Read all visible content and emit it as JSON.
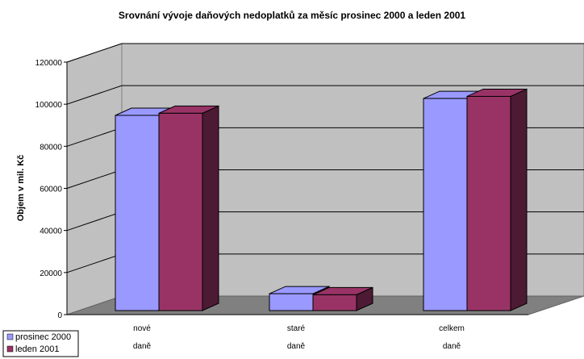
{
  "chart_data": {
    "type": "bar",
    "title": "Srovnání vývoje daňových nedoplatků za měsíc prosinec 2000 a leden 2001",
    "ylabel": "Objem v mil. Kč",
    "ylim": [
      0,
      120000
    ],
    "yticks": [
      "0",
      "20000",
      "40000",
      "60000",
      "80000",
      "100000",
      "120000"
    ],
    "categories": [
      [
        "nové",
        "daně"
      ],
      [
        "staré",
        "daně"
      ],
      [
        "celkem",
        "daně"
      ]
    ],
    "series": [
      {
        "name": "prosinec 2000",
        "values": [
          92500,
          8000,
          100500
        ],
        "color": "#9999ff"
      },
      {
        "name": "leden 2001",
        "values": [
          93500,
          7500,
          101500
        ],
        "color": "#993366"
      }
    ],
    "grid": true,
    "legend": "bottom-left",
    "view": "3d"
  }
}
